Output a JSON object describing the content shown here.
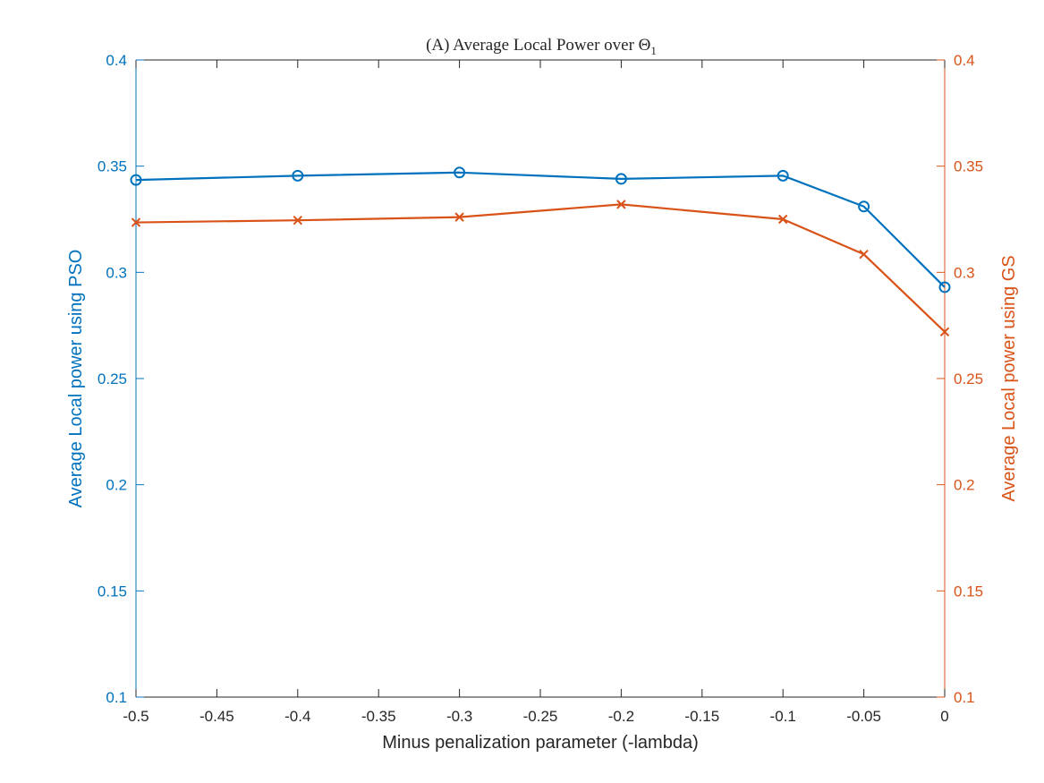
{
  "chart_data": {
    "type": "line",
    "title": "(A) Average Local Power over Θ",
    "title_subscript": "1",
    "xlabel": "Minus penalization parameter (-lambda)",
    "ylabel_left": "Average Local power using PSO",
    "ylabel_right": "Average Local power using GS",
    "xlim": [
      -0.5,
      0
    ],
    "ylim_left": [
      0.1,
      0.4
    ],
    "ylim_right": [
      0.1,
      0.4
    ],
    "x_ticks": [
      -0.5,
      -0.45,
      -0.4,
      -0.35,
      -0.3,
      -0.25,
      -0.2,
      -0.15,
      -0.1,
      -0.05,
      0
    ],
    "x_tick_labels": [
      "-0.5",
      "-0.45",
      "-0.4",
      "-0.35",
      "-0.3",
      "-0.25",
      "-0.2",
      "-0.15",
      "-0.1",
      "-0.05",
      "0"
    ],
    "y_ticks": [
      0.1,
      0.15,
      0.2,
      0.25,
      0.3,
      0.35,
      0.4
    ],
    "y_tick_labels": [
      "0.1",
      "0.15",
      "0.2",
      "0.25",
      "0.3",
      "0.35",
      "0.4"
    ],
    "grid": false,
    "series": [
      {
        "axis": "left",
        "marker": "circle",
        "color": "#0072BD",
        "x": [
          -0.5,
          -0.4,
          -0.3,
          -0.2,
          -0.1,
          -0.05,
          0
        ],
        "values": [
          0.3435,
          0.3455,
          0.347,
          0.344,
          0.3455,
          0.331,
          0.293
        ]
      },
      {
        "axis": "right",
        "marker": "x",
        "color": "#D95319",
        "x": [
          -0.5,
          -0.4,
          -0.3,
          -0.2,
          -0.1,
          -0.05,
          0
        ],
        "values": [
          0.3235,
          0.3245,
          0.326,
          0.332,
          0.325,
          0.3085,
          0.272
        ]
      }
    ]
  }
}
